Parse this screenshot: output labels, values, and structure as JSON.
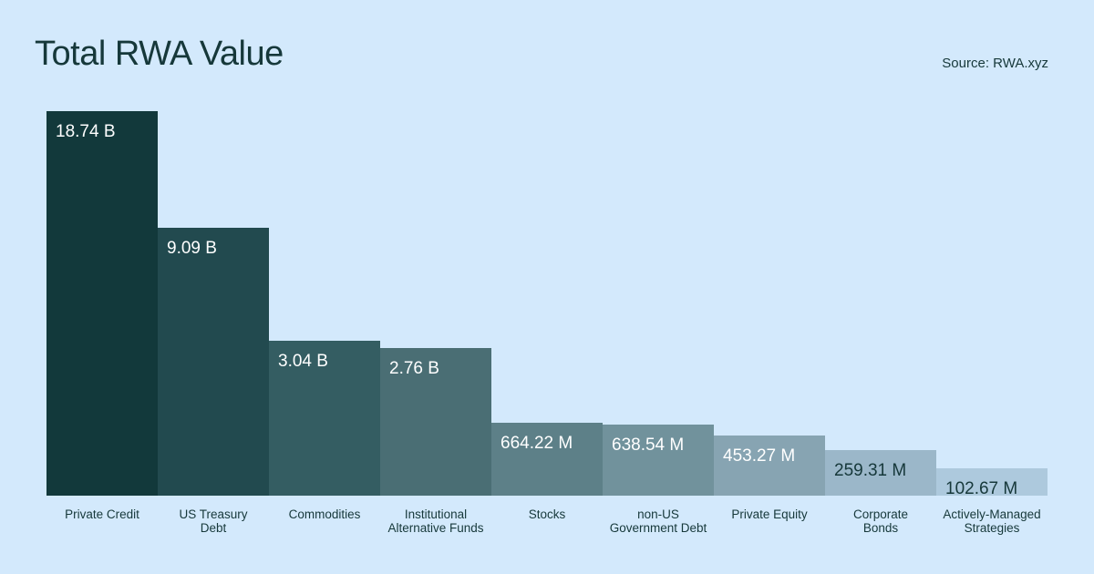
{
  "chart_data": {
    "type": "bar",
    "title": "Total RWA Value",
    "source": "Source: RWA.xyz",
    "categories": [
      [
        "Private Credit"
      ],
      [
        "US Treasury",
        "Debt"
      ],
      [
        "Commodities"
      ],
      [
        "Institutional",
        "Alternative Funds"
      ],
      [
        "Stocks"
      ],
      [
        "non-US",
        "Government Debt"
      ],
      [
        "Private Equity"
      ],
      [
        "Corporate",
        "Bonds"
      ],
      [
        "Actively-Managed",
        "Strategies"
      ]
    ],
    "values": [
      18.74,
      9.09,
      3.04,
      2.76,
      0.66422,
      0.63854,
      0.45327,
      0.25931,
      0.10267
    ],
    "value_labels": [
      "18.74 B",
      "9.09 B",
      "3.04 B",
      "2.76 B",
      "664.22 M",
      "638.54 M",
      "453.27 M",
      "259.31 M",
      "102.67 M"
    ],
    "unit": "USD",
    "scale": "custom-compressed",
    "colors": [
      "#12393b",
      "#224a4f",
      "#345d62",
      "#4a6e74",
      "#5d8088",
      "#71929c",
      "#87a4b2",
      "#9bb7c9",
      "#adc9dd"
    ],
    "label_colors": [
      "#ffffff",
      "#ffffff",
      "#ffffff",
      "#ffffff",
      "#ffffff",
      "#ffffff",
      "#ffffff",
      "#16383a",
      "#16383a"
    ],
    "grid": false,
    "legend": "none"
  }
}
